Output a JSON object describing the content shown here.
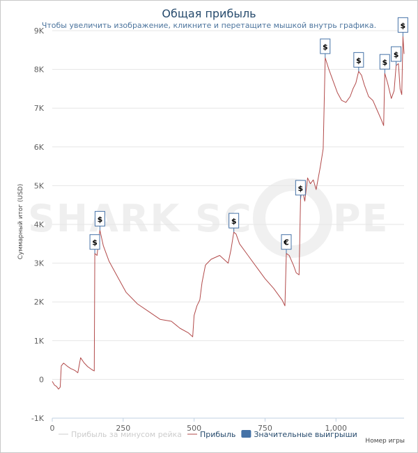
{
  "chart_data": {
    "type": "line",
    "title": "Общая прибыль",
    "subtitle": "Чтобы увеличить изображение, кликните и перетащите мышкой внутрь графика.",
    "xlabel": "Номер игры",
    "ylabel": "Суммарный итог (USD)",
    "xlim": [
      0,
      1240
    ],
    "ylim": [
      -1000,
      9000
    ],
    "x_ticks": [
      "0",
      "250",
      "500",
      "750",
      "1,000"
    ],
    "x_tick_values": [
      0,
      250,
      500,
      750,
      1000
    ],
    "y_ticks": [
      "-1K",
      "0",
      "1K",
      "2K",
      "3K",
      "4K",
      "5K",
      "6K",
      "7K",
      "8K",
      "9K"
    ],
    "y_tick_values": [
      -1000,
      0,
      1000,
      2000,
      3000,
      4000,
      5000,
      6000,
      7000,
      8000,
      9000
    ],
    "grid": "horizontal",
    "legend_position": "bottom",
    "series": [
      {
        "name": "Прибыль",
        "color": "#b24a4a",
        "points": [
          [
            0,
            -50
          ],
          [
            8,
            -150
          ],
          [
            15,
            -180
          ],
          [
            22,
            -250
          ],
          [
            28,
            -200
          ],
          [
            32,
            350
          ],
          [
            40,
            420
          ],
          [
            55,
            330
          ],
          [
            65,
            280
          ],
          [
            80,
            230
          ],
          [
            90,
            170
          ],
          [
            100,
            560
          ],
          [
            112,
            430
          ],
          [
            125,
            330
          ],
          [
            140,
            250
          ],
          [
            148,
            220
          ],
          [
            150,
            3250
          ],
          [
            158,
            3200
          ],
          [
            163,
            3550
          ],
          [
            168,
            3850
          ],
          [
            180,
            3450
          ],
          [
            200,
            3050
          ],
          [
            230,
            2650
          ],
          [
            260,
            2250
          ],
          [
            300,
            1950
          ],
          [
            340,
            1750
          ],
          [
            380,
            1550
          ],
          [
            420,
            1500
          ],
          [
            450,
            1320
          ],
          [
            480,
            1200
          ],
          [
            495,
            1100
          ],
          [
            500,
            1650
          ],
          [
            510,
            1900
          ],
          [
            520,
            2050
          ],
          [
            528,
            2500
          ],
          [
            540,
            2950
          ],
          [
            560,
            3100
          ],
          [
            590,
            3200
          ],
          [
            620,
            3000
          ],
          [
            630,
            3350
          ],
          [
            640,
            3800
          ],
          [
            648,
            3750
          ],
          [
            660,
            3500
          ],
          [
            690,
            3200
          ],
          [
            720,
            2900
          ],
          [
            750,
            2600
          ],
          [
            780,
            2350
          ],
          [
            810,
            2050
          ],
          [
            820,
            1900
          ],
          [
            825,
            3250
          ],
          [
            835,
            3200
          ],
          [
            850,
            2950
          ],
          [
            860,
            2750
          ],
          [
            870,
            2700
          ],
          [
            875,
            4650
          ],
          [
            880,
            4950
          ],
          [
            890,
            4600
          ],
          [
            900,
            5200
          ],
          [
            910,
            5050
          ],
          [
            920,
            5150
          ],
          [
            930,
            4900
          ],
          [
            945,
            5500
          ],
          [
            955,
            5950
          ],
          [
            962,
            8300
          ],
          [
            975,
            8000
          ],
          [
            990,
            7700
          ],
          [
            1005,
            7400
          ],
          [
            1020,
            7200
          ],
          [
            1035,
            7150
          ],
          [
            1050,
            7300
          ],
          [
            1060,
            7500
          ],
          [
            1070,
            7650
          ],
          [
            1080,
            7950
          ],
          [
            1090,
            7850
          ],
          [
            1100,
            7600
          ],
          [
            1115,
            7300
          ],
          [
            1130,
            7200
          ],
          [
            1145,
            6950
          ],
          [
            1160,
            6700
          ],
          [
            1168,
            6550
          ],
          [
            1172,
            7900
          ],
          [
            1182,
            7650
          ],
          [
            1195,
            7250
          ],
          [
            1205,
            7450
          ],
          [
            1212,
            8100
          ],
          [
            1220,
            8150
          ],
          [
            1226,
            7500
          ],
          [
            1232,
            7350
          ],
          [
            1236,
            8850
          ],
          [
            1240,
            8400
          ]
        ]
      }
    ],
    "legend": [
      {
        "label": "Прибыль за минусом рейка",
        "color": "#cccccc",
        "text_color": "#cccccc",
        "kind": "line"
      },
      {
        "label": "Прибыль",
        "color": "#b24a4a",
        "text_color": "#274b6d",
        "kind": "line"
      },
      {
        "label": "Значительные выигрыши",
        "color": "#4572a7",
        "text_color": "#274b6d",
        "kind": "box"
      }
    ],
    "flags": [
      {
        "label": "$",
        "x": 150,
        "y": 3250
      },
      {
        "label": "$",
        "x": 168,
        "y": 3850
      },
      {
        "label": "$",
        "x": 640,
        "y": 3800
      },
      {
        "label": "€",
        "x": 825,
        "y": 3250
      },
      {
        "label": "$",
        "x": 875,
        "y": 4650
      },
      {
        "label": "$",
        "x": 962,
        "y": 8300
      },
      {
        "label": "$",
        "x": 1080,
        "y": 7950
      },
      {
        "label": "$",
        "x": 1172,
        "y": 7900
      },
      {
        "label": "$",
        "x": 1212,
        "y": 8100
      },
      {
        "label": "$",
        "x": 1236,
        "y": 8850
      }
    ]
  }
}
